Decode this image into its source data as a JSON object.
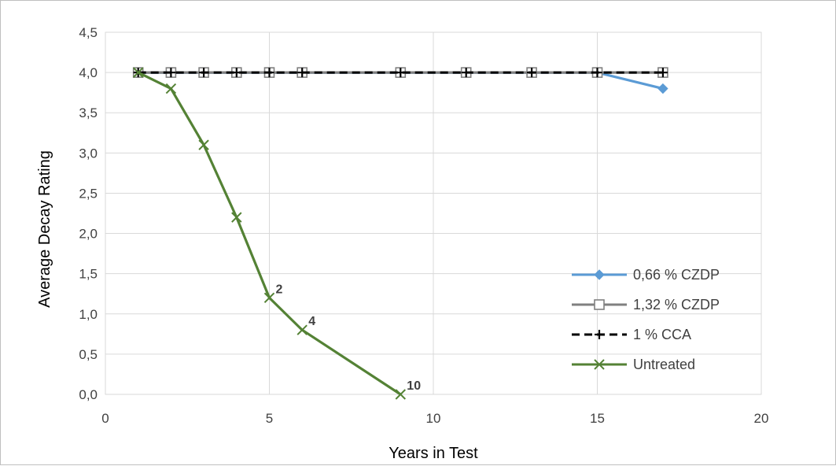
{
  "chart_data": {
    "type": "line",
    "title": "",
    "xlabel": "Years in Test",
    "ylabel": "Average Decay Rating",
    "xlim": [
      0,
      20
    ],
    "ylim": [
      0,
      4.5
    ],
    "x_ticks": [
      0,
      5,
      10,
      15,
      20
    ],
    "x_tick_labels": [
      "0",
      "5",
      "10",
      "15",
      "20"
    ],
    "y_ticks": [
      0,
      0.5,
      1.0,
      1.5,
      2.0,
      2.5,
      3.0,
      3.5,
      4.0,
      4.5
    ],
    "y_tick_labels": [
      "0,0",
      "0,5",
      "1,0",
      "1,5",
      "2,0",
      "2,5",
      "3,0",
      "3,5",
      "4,0",
      "4,5"
    ],
    "grid": true,
    "legend_position": "right",
    "series": [
      {
        "name": "0,66 % CZDP",
        "color": "#5b9bd5",
        "marker": "diamond",
        "dash": "solid",
        "x": [
          1,
          2,
          3,
          4,
          5,
          6,
          9,
          11,
          13,
          15,
          17
        ],
        "y": [
          4.0,
          4.0,
          4.0,
          4.0,
          4.0,
          4.0,
          4.0,
          4.0,
          4.0,
          4.0,
          3.8
        ]
      },
      {
        "name": "1,32 % CZDP",
        "color": "#808080",
        "marker": "square",
        "dash": "solid",
        "x": [
          1,
          2,
          3,
          4,
          5,
          6,
          9,
          11,
          13,
          15,
          17
        ],
        "y": [
          4.0,
          4.0,
          4.0,
          4.0,
          4.0,
          4.0,
          4.0,
          4.0,
          4.0,
          4.0,
          4.0
        ]
      },
      {
        "name": "1 % CCA",
        "color": "#000000",
        "marker": "plus",
        "dash": "dashed",
        "x": [
          1,
          2,
          3,
          4,
          5,
          6,
          9,
          11,
          13,
          15,
          17
        ],
        "y": [
          4.0,
          4.0,
          4.0,
          4.0,
          4.0,
          4.0,
          4.0,
          4.0,
          4.0,
          4.0,
          4.0
        ]
      },
      {
        "name": "Untreated",
        "color": "#548235",
        "marker": "x",
        "dash": "solid",
        "x": [
          1,
          2,
          3,
          4,
          5,
          6,
          9
        ],
        "y": [
          4.0,
          3.8,
          3.1,
          2.2,
          1.2,
          0.8,
          0.0
        ]
      }
    ],
    "annotations": [
      {
        "text": "2",
        "x": 5,
        "y": 1.2
      },
      {
        "text": "4",
        "x": 6,
        "y": 0.8
      },
      {
        "text": "10",
        "x": 9,
        "y": 0.0
      }
    ]
  }
}
